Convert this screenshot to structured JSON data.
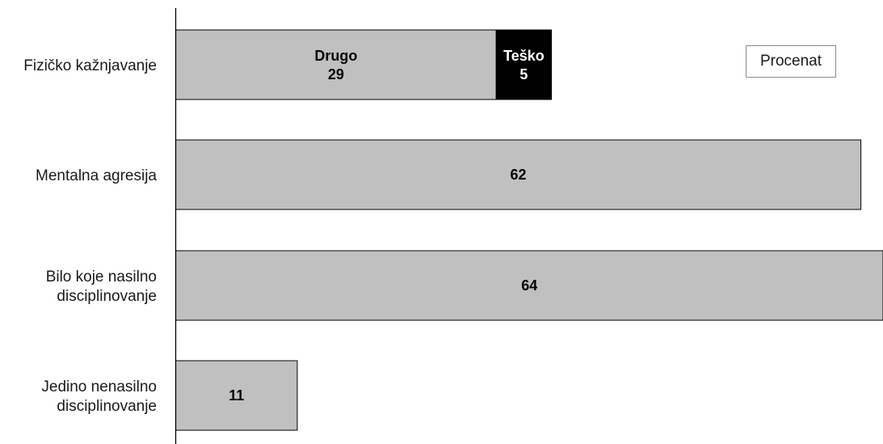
{
  "chart_data": {
    "type": "bar",
    "orientation": "horizontal",
    "stacked": true,
    "categories": [
      [
        "Fizičko kažnjavanje"
      ],
      [
        "Mentalna agresija"
      ],
      [
        "Bilo koje nasilno",
        "disciplinovanje"
      ],
      [
        "Jedino nenasilno",
        "disciplinovanje"
      ]
    ],
    "bars": [
      {
        "segments": [
          {
            "name": "Drugo",
            "value": 29,
            "color": "#c0c0c0",
            "text_color": "#000000",
            "show_name": true
          },
          {
            "name": "Teško",
            "value": 5,
            "color": "#000000",
            "text_color": "#ffffff",
            "show_name": true
          }
        ]
      },
      {
        "segments": [
          {
            "name": "",
            "value": 62,
            "color": "#c0c0c0",
            "text_color": "#000000",
            "show_name": false
          }
        ]
      },
      {
        "segments": [
          {
            "name": "",
            "value": 64,
            "color": "#c0c0c0",
            "text_color": "#000000",
            "show_name": false
          }
        ]
      },
      {
        "segments": [
          {
            "name": "",
            "value": 11,
            "color": "#c0c0c0",
            "text_color": "#000000",
            "show_name": false
          }
        ]
      }
    ],
    "xlim": [
      0,
      64
    ],
    "legend": {
      "label": "Procenat",
      "placement": "top-right"
    },
    "grid": false
  }
}
